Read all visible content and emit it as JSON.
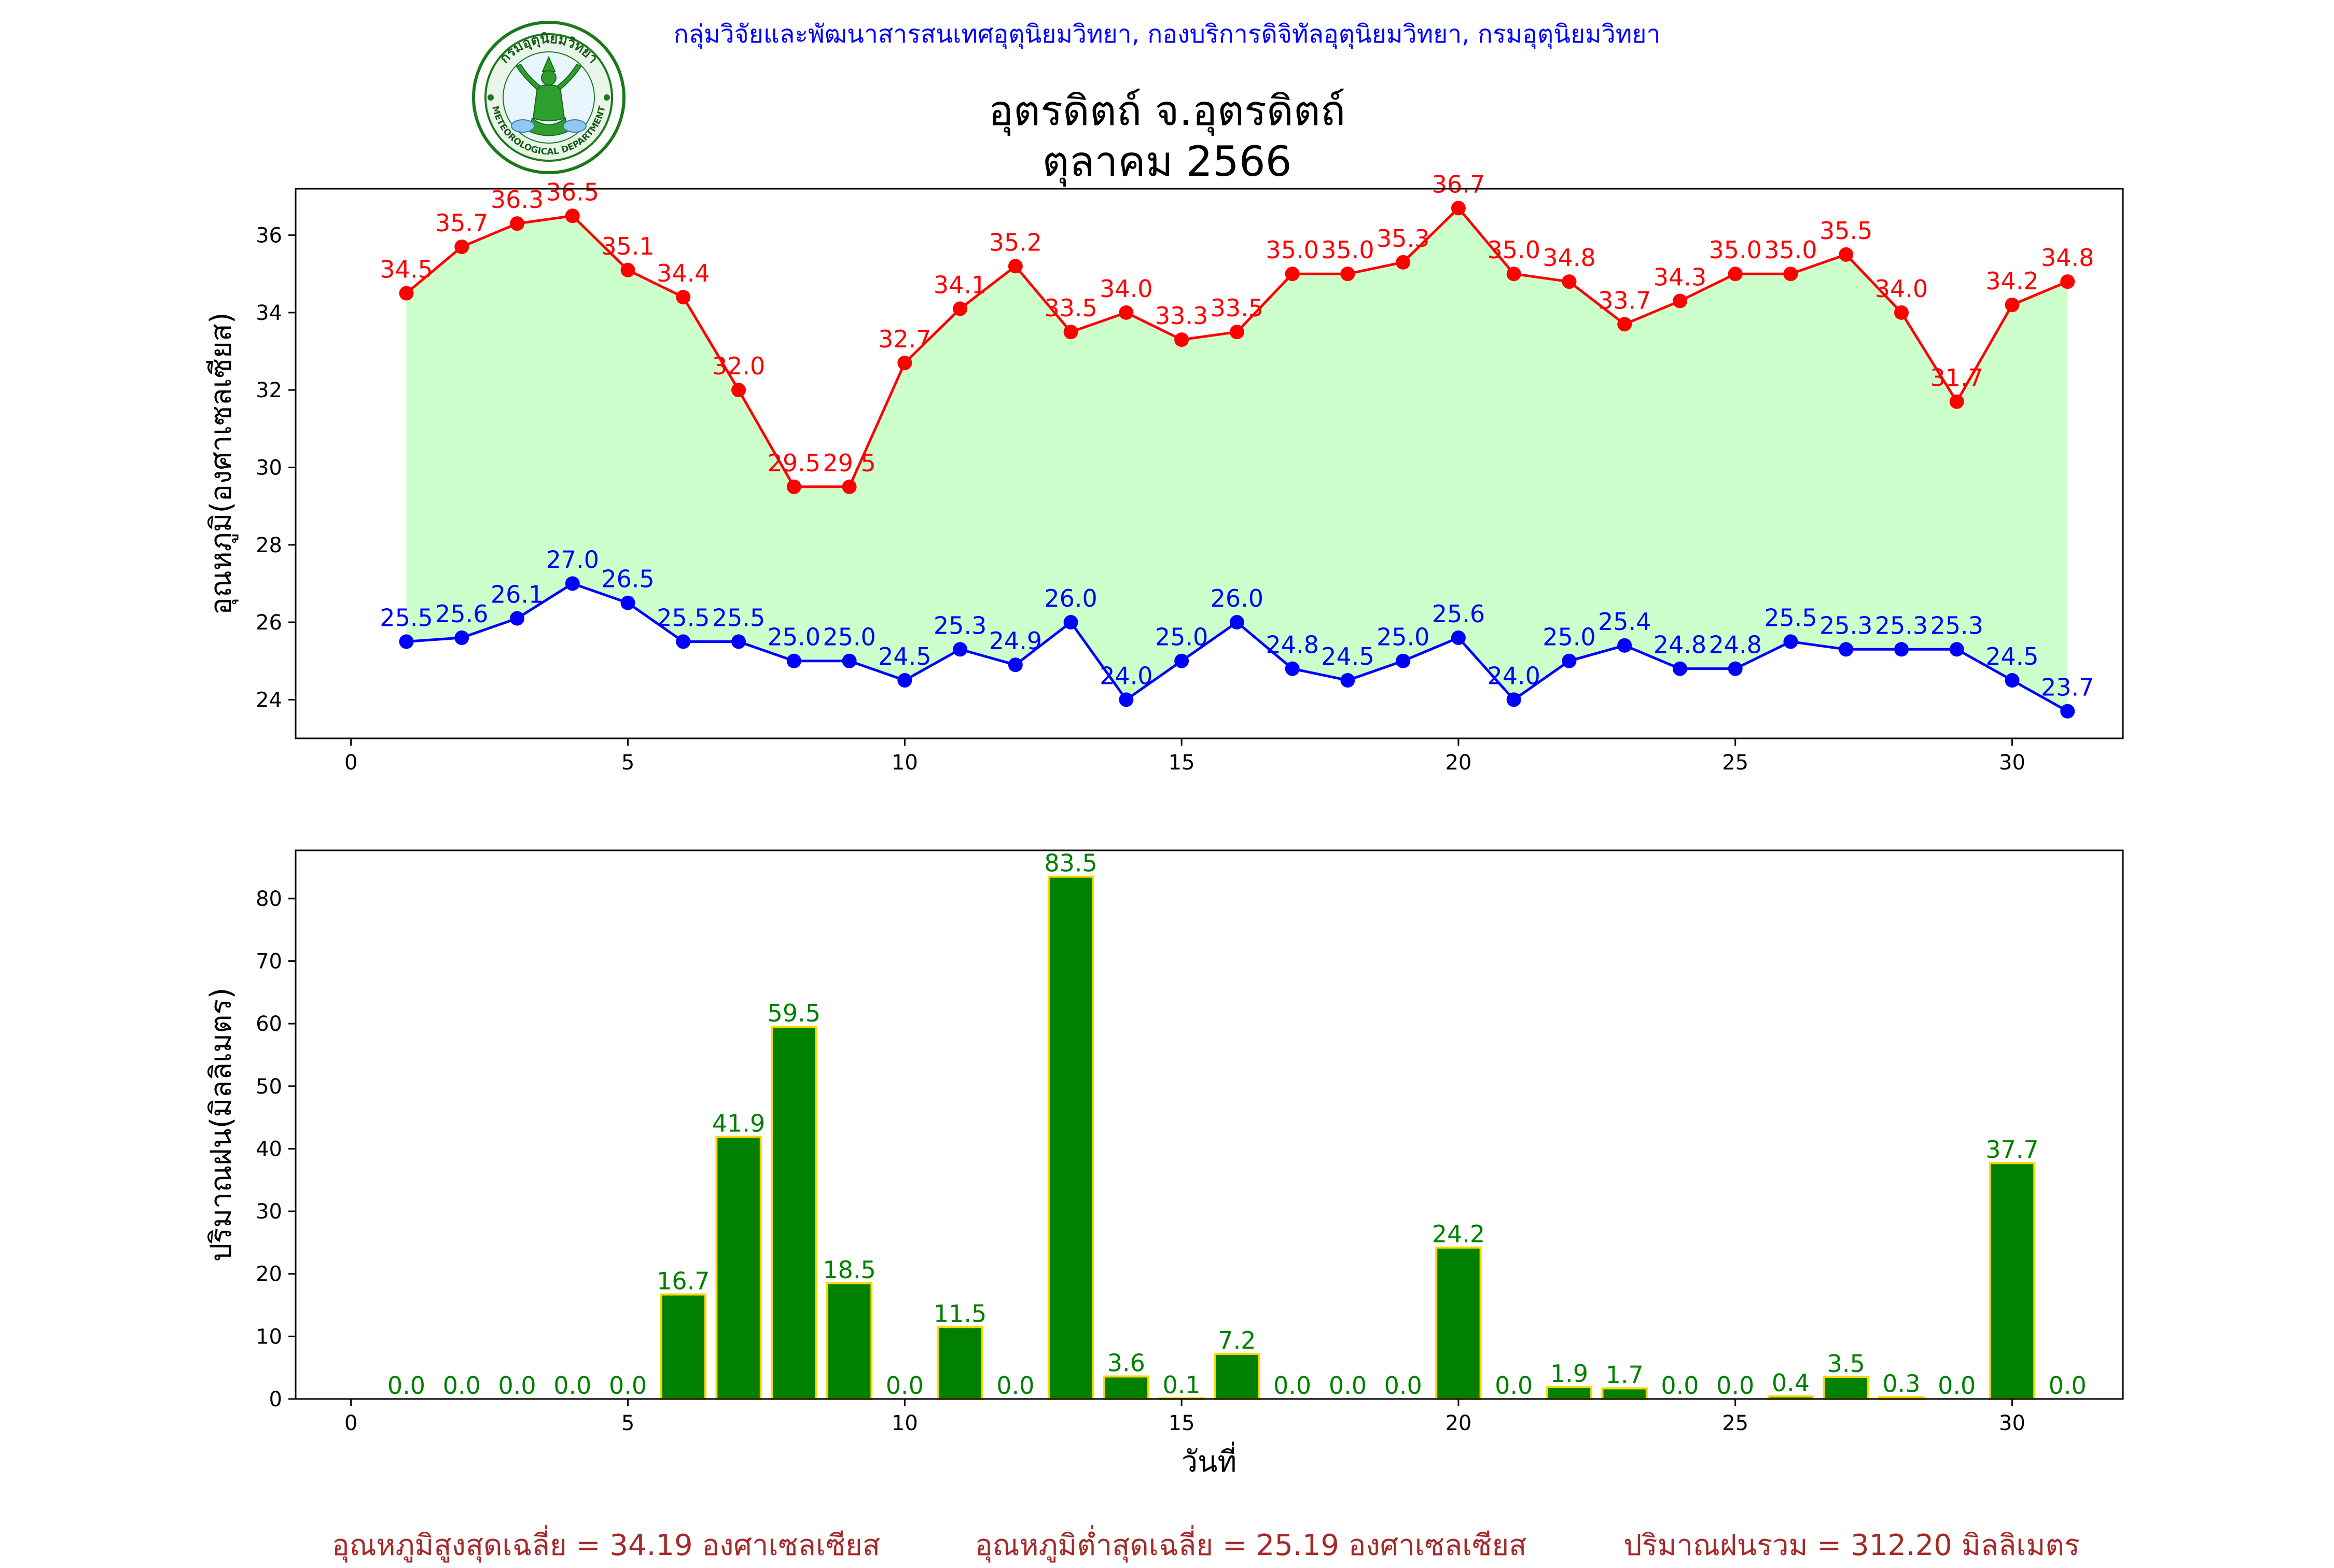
{
  "header": {
    "credit": "กลุ่มวิจัยและพัฒนาสารสนเทศอุตุนิยมวิทยา, กองบริการดิจิทัลอุตุนิยมวิทยา, กรมอุตุนิยมวิทยา",
    "title_line1": "อุตรดิตถ์ จ.อุตรดิตถ์",
    "title_line2": "ตุลาคม 2566",
    "logo": {
      "top_text": "กรมอุตุนิยมวิทยา",
      "bottom_text": "METEOROLOGICAL DEPARTMENT",
      "ring_color": "#1a7a1a",
      "figure_color": "#2e9e2e"
    }
  },
  "chart_data": [
    {
      "type": "line",
      "ylabel": "อุณหภูมิ(องศาเซลเซียส)",
      "xlabel": "",
      "x": [
        1,
        2,
        3,
        4,
        5,
        6,
        7,
        8,
        9,
        10,
        11,
        12,
        13,
        14,
        15,
        16,
        17,
        18,
        19,
        20,
        21,
        22,
        23,
        24,
        25,
        26,
        27,
        28,
        29,
        30,
        31
      ],
      "xlim": [
        -1,
        32
      ],
      "ylim": [
        23.0,
        37.2
      ],
      "xticks": [
        0,
        5,
        10,
        15,
        20,
        25,
        30
      ],
      "yticks": [
        24,
        26,
        28,
        30,
        32,
        34,
        36
      ],
      "fill_between": {
        "color": "#ccffcc"
      },
      "series": [
        {
          "color": "#ff0000",
          "values": [
            34.5,
            35.7,
            36.3,
            36.5,
            35.1,
            34.4,
            32.0,
            29.5,
            29.5,
            32.7,
            34.1,
            35.2,
            33.5,
            34.0,
            33.3,
            33.5,
            35.0,
            35.0,
            35.3,
            36.7,
            35.0,
            34.8,
            33.7,
            34.3,
            35.0,
            35.0,
            35.5,
            34.0,
            31.7,
            34.2,
            34.8
          ]
        },
        {
          "color": "#0000ff",
          "values": [
            25.5,
            25.6,
            26.1,
            27.0,
            26.5,
            25.5,
            25.5,
            25.0,
            25.0,
            24.5,
            25.3,
            24.9,
            26.0,
            24.0,
            25.0,
            26.0,
            24.8,
            24.5,
            25.0,
            25.6,
            24.0,
            25.0,
            25.4,
            24.8,
            24.8,
            25.5,
            25.3,
            25.3,
            25.3,
            24.5,
            23.7
          ]
        }
      ]
    },
    {
      "type": "bar",
      "ylabel": "ปริมาณฝน(มิลลิเมตร)",
      "xlabel": "วันที่",
      "x": [
        1,
        2,
        3,
        4,
        5,
        6,
        7,
        8,
        9,
        10,
        11,
        12,
        13,
        14,
        15,
        16,
        17,
        18,
        19,
        20,
        21,
        22,
        23,
        24,
        25,
        26,
        27,
        28,
        29,
        30,
        31
      ],
      "values": [
        0.0,
        0.0,
        0.0,
        0.0,
        0.0,
        16.7,
        41.9,
        59.5,
        18.5,
        0.0,
        11.5,
        0.0,
        83.5,
        3.6,
        0.1,
        7.2,
        0.0,
        0.0,
        0.0,
        24.2,
        0.0,
        1.9,
        1.7,
        0.0,
        0.0,
        0.4,
        3.5,
        0.3,
        0.0,
        37.7,
        0.0
      ],
      "xlim": [
        -1,
        32
      ],
      "ylim": [
        0,
        87.7
      ],
      "xticks": [
        0,
        5,
        10,
        15,
        20,
        25,
        30
      ],
      "yticks": [
        0,
        10,
        20,
        30,
        40,
        50,
        60,
        70,
        80
      ],
      "bar_color": "#008000",
      "bar_edge_color": "#ffd700",
      "label_color": "#008000"
    }
  ],
  "footer": {
    "max_avg": "อุณหภูมิสูงสุดเฉลี่ย = 34.19 องศาเซลเซียส",
    "min_avg": "อุณหภูมิต่ำสุดเฉลี่ย = 25.19 องศาเซลเซียส",
    "rain_total": "ปริมาณฝนรวม = 312.20 มิลลิเมตร"
  }
}
